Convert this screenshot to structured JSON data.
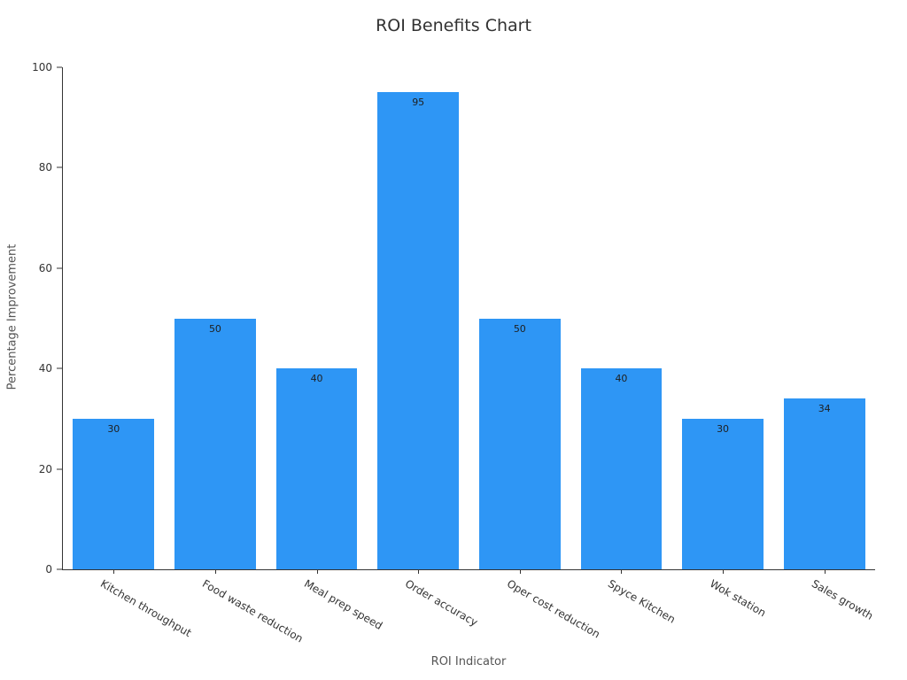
{
  "chart_data": {
    "type": "bar",
    "title": "ROI Benefits Chart",
    "xlabel": "ROI Indicator",
    "ylabel": "Percentage Improvement",
    "categories": [
      "Kitchen throughput",
      "Food waste reduction",
      "Meal prep speed",
      "Order accuracy",
      "Oper cost reduction",
      "Spyce Kitchen",
      "Wok station",
      "Sales growth"
    ],
    "values": [
      30,
      50,
      40,
      95,
      50,
      40,
      30,
      34
    ],
    "ylim": [
      0,
      100
    ],
    "yticks": [
      0,
      20,
      40,
      60,
      80,
      100
    ],
    "bar_color": "#2E96F5",
    "grid": false,
    "legend": false,
    "value_labels": true,
    "tick_label_rotation_deg": 30
  }
}
